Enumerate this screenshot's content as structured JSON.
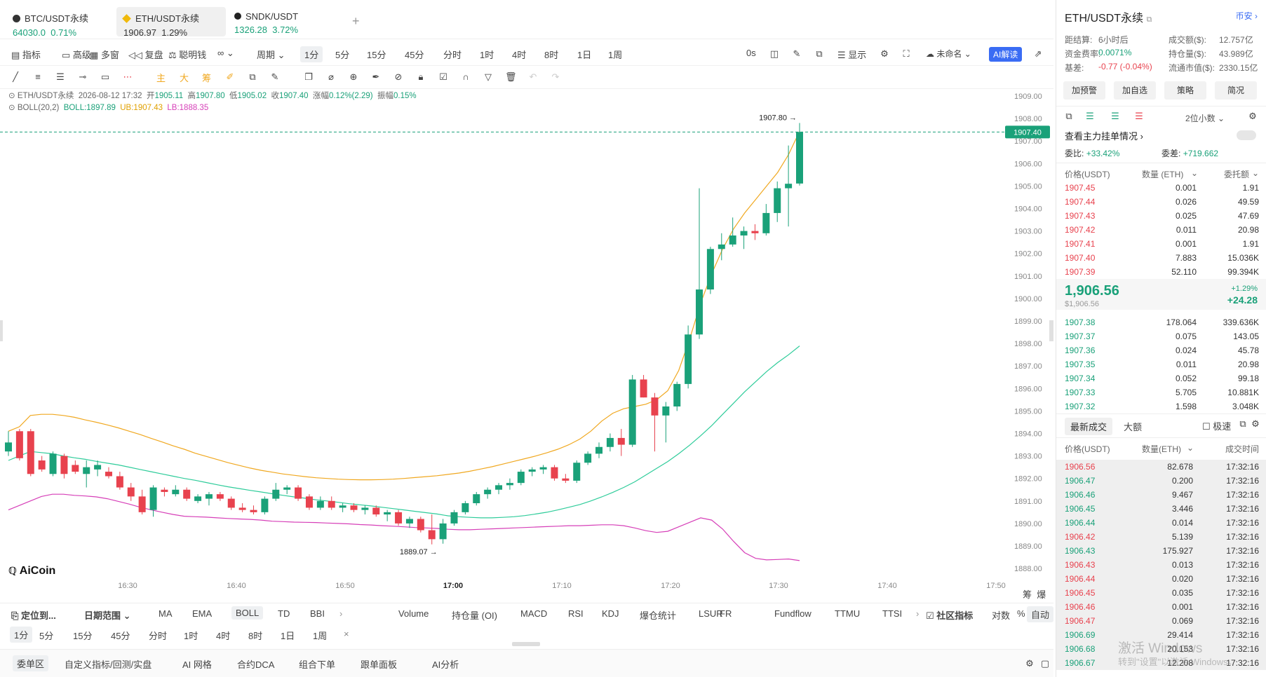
{
  "tabs": [
    {
      "name": "BTC/USDT永续",
      "price": "64030.0",
      "change": "0.71%",
      "color": "green",
      "icon": "btc-icon"
    },
    {
      "name": "ETH/USDT永续",
      "price": "1906.97",
      "change": "1.29%",
      "color": "dark",
      "icon": "eth-icon"
    },
    {
      "name": "SNDK/USDT",
      "price": "1326.28",
      "change": "3.72%",
      "color": "green",
      "icon": "sndk-icon"
    }
  ],
  "add_tab": "+",
  "toolbar1": {
    "indicator": "指标",
    "advanced": "高级",
    "multi": "多窗",
    "replay": "复盘",
    "smart": "聪明钱",
    "period": "周期",
    "intervals": [
      "1分",
      "5分",
      "15分",
      "45分",
      "分时",
      "1时",
      "4时",
      "8时",
      "1日",
      "1周"
    ],
    "active_interval": "1分",
    "seconds": "0s",
    "display": "显示",
    "unnamed": "未命名",
    "ai": "AI解读"
  },
  "toolbar2": {
    "main": "主",
    "big": "大",
    "chip": "筹"
  },
  "legend": {
    "symbol": "ETH/USDT永续",
    "datetime": "2026-08-12 17:32",
    "open_label": "开",
    "open": "1905.11",
    "high_label": "高",
    "high": "1907.80",
    "low_label": "低",
    "low": "1905.02",
    "close_label": "收",
    "close": "1907.40",
    "chg_label": "涨幅",
    "chg": "0.12%(2.29)",
    "amp_label": "振幅",
    "amp": "0.15%",
    "boll": "BOLL(20,2)",
    "boll_v": "BOLL:1897.89",
    "ub": "UB:1907.43",
    "lb": "LB:1888.35"
  },
  "chart_data": {
    "type": "candlestick",
    "ylim": [
      1887.6,
      1909.2
    ],
    "y_ticks": [
      "1909.00",
      "1908.00",
      "1907.00",
      "1906.00",
      "1905.00",
      "1904.00",
      "1903.00",
      "1902.00",
      "1901.00",
      "1900.00",
      "1899.00",
      "1898.00",
      "1897.00",
      "1896.00",
      "1895.00",
      "1894.00",
      "1893.00",
      "1892.00",
      "1891.00",
      "1890.00",
      "1889.00",
      "1888.00"
    ],
    "x_ticks": [
      "16:30",
      "16:40",
      "16:50",
      "17:00",
      "17:10",
      "17:20",
      "17:30",
      "17:40",
      "17:50"
    ],
    "current_price": "1907.40",
    "high_marker": "1907.80 →",
    "low_marker": "1889.07 →",
    "candles": [
      [
        1893.2,
        1894.1,
        1893.0,
        1893.6
      ],
      [
        1894.1,
        1894.2,
        1892.8,
        1892.9
      ],
      [
        1894.1,
        1894.2,
        1892.1,
        1892.2
      ],
      [
        1892.8,
        1893.0,
        1892.3,
        1892.4
      ],
      [
        1892.2,
        1893.2,
        1892.1,
        1893.1
      ],
      [
        1893.0,
        1893.1,
        1892.0,
        1892.2
      ],
      [
        1892.6,
        1892.8,
        1892.2,
        1892.3
      ],
      [
        1892.2,
        1892.8,
        1891.6,
        1892.5
      ],
      [
        1892.4,
        1892.8,
        1892.1,
        1892.6
      ],
      [
        1892.3,
        1892.5,
        1892.0,
        1892.1
      ],
      [
        1892.1,
        1892.3,
        1891.5,
        1891.6
      ],
      [
        1891.6,
        1891.8,
        1891.0,
        1891.2
      ],
      [
        1891.2,
        1891.5,
        1890.4,
        1890.5
      ],
      [
        1890.6,
        1891.7,
        1890.3,
        1891.6
      ],
      [
        1891.5,
        1891.6,
        1891.2,
        1891.4
      ],
      [
        1891.3,
        1891.7,
        1891.2,
        1891.5
      ],
      [
        1891.5,
        1891.6,
        1891.0,
        1891.1
      ],
      [
        1891.0,
        1891.3,
        1890.9,
        1891.2
      ],
      [
        1891.1,
        1891.4,
        1890.8,
        1891.3
      ],
      [
        1891.3,
        1891.4,
        1891.0,
        1891.1
      ],
      [
        1891.1,
        1891.2,
        1890.6,
        1890.7
      ],
      [
        1890.7,
        1890.9,
        1890.5,
        1890.6
      ],
      [
        1890.6,
        1890.8,
        1890.4,
        1890.5
      ],
      [
        1890.5,
        1891.2,
        1890.4,
        1891.1
      ],
      [
        1891.1,
        1891.8,
        1891.0,
        1891.5
      ],
      [
        1891.5,
        1891.7,
        1891.3,
        1891.6
      ],
      [
        1891.6,
        1891.7,
        1891.0,
        1891.1
      ],
      [
        1891.2,
        1891.3,
        1890.6,
        1890.7
      ],
      [
        1890.7,
        1891.2,
        1890.6,
        1891.0
      ],
      [
        1891.0,
        1891.2,
        1890.6,
        1890.7
      ],
      [
        1890.7,
        1890.9,
        1890.5,
        1890.8
      ],
      [
        1890.8,
        1890.9,
        1890.5,
        1890.6
      ],
      [
        1890.6,
        1890.8,
        1890.4,
        1890.7
      ],
      [
        1890.7,
        1890.8,
        1890.3,
        1890.4
      ],
      [
        1890.4,
        1890.6,
        1890.1,
        1890.5
      ],
      [
        1890.5,
        1890.6,
        1889.9,
        1890.0
      ],
      [
        1890.0,
        1890.3,
        1889.8,
        1890.2
      ],
      [
        1890.2,
        1890.3,
        1889.6,
        1889.7
      ],
      [
        1889.7,
        1890.4,
        1889.07,
        1889.3
      ],
      [
        1889.3,
        1890.2,
        1889.1,
        1890.0
      ],
      [
        1890.0,
        1890.6,
        1889.9,
        1890.5
      ],
      [
        1890.5,
        1891.0,
        1890.4,
        1890.9
      ],
      [
        1890.9,
        1891.4,
        1890.8,
        1891.3
      ],
      [
        1891.3,
        1891.6,
        1891.1,
        1891.5
      ],
      [
        1891.5,
        1891.8,
        1891.3,
        1891.7
      ],
      [
        1891.7,
        1892.0,
        1891.5,
        1891.8
      ],
      [
        1891.8,
        1892.4,
        1891.7,
        1892.3
      ],
      [
        1892.3,
        1892.5,
        1892.1,
        1892.4
      ],
      [
        1892.4,
        1892.6,
        1892.2,
        1892.5
      ],
      [
        1892.5,
        1892.6,
        1891.9,
        1892.0
      ],
      [
        1892.0,
        1892.2,
        1891.8,
        1891.9
      ],
      [
        1891.9,
        1892.8,
        1891.8,
        1892.7
      ],
      [
        1892.7,
        1893.2,
        1892.6,
        1893.1
      ],
      [
        1893.1,
        1893.6,
        1892.9,
        1893.4
      ],
      [
        1893.4,
        1894.0,
        1893.2,
        1893.8
      ],
      [
        1893.8,
        1894.2,
        1893.0,
        1893.5
      ],
      [
        1893.5,
        1896.6,
        1893.4,
        1896.4
      ],
      [
        1896.4,
        1896.6,
        1895.6,
        1895.6
      ],
      [
        1895.6,
        1895.8,
        1893.2,
        1894.8
      ],
      [
        1894.8,
        1895.4,
        1893.6,
        1895.2
      ],
      [
        1895.2,
        1896.3,
        1895.0,
        1896.2
      ],
      [
        1896.2,
        1898.8,
        1896.0,
        1898.4
      ],
      [
        1898.4,
        1904.9,
        1898.2,
        1900.4
      ],
      [
        1900.4,
        1902.3,
        1900.2,
        1902.2
      ],
      [
        1902.2,
        1902.9,
        1901.7,
        1902.4
      ],
      [
        1902.4,
        1903.6,
        1902.3,
        1902.8
      ],
      [
        1902.8,
        1903.2,
        1902.2,
        1903.0
      ],
      [
        1903.0,
        1903.3,
        1902.6,
        1902.9
      ],
      [
        1902.9,
        1904.2,
        1902.8,
        1903.8
      ],
      [
        1903.8,
        1905.2,
        1903.4,
        1904.9
      ],
      [
        1904.9,
        1906.8,
        1903.2,
        1905.1
      ],
      [
        1905.11,
        1907.8,
        1905.02,
        1907.4
      ]
    ],
    "boll_mid": [
      1893.2,
      1893.15,
      1893.1,
      1893.0,
      1892.92,
      1892.85,
      1892.76,
      1892.68,
      1892.6,
      1892.5,
      1892.4,
      1892.3,
      1892.2,
      1892.1,
      1892.0,
      1891.92,
      1891.82,
      1891.72,
      1891.63,
      1891.55,
      1891.47,
      1891.4,
      1891.32,
      1891.25,
      1891.18,
      1891.12,
      1891.05,
      1891.0,
      1890.94,
      1890.88,
      1890.83,
      1890.78,
      1890.72,
      1890.66,
      1890.6,
      1890.54,
      1890.48,
      1890.42,
      1890.34,
      1890.3,
      1890.27,
      1890.25,
      1890.25,
      1890.27,
      1890.3,
      1890.35,
      1890.42,
      1890.5,
      1890.6,
      1890.72,
      1890.84,
      1891.0,
      1891.18,
      1891.38,
      1891.6,
      1891.85,
      1892.15,
      1892.45,
      1892.75,
      1893.1,
      1893.48,
      1893.9,
      1894.35,
      1894.85,
      1895.35,
      1895.85,
      1896.3,
      1896.75,
      1897.15,
      1897.5,
      1897.89
    ],
    "boll_ub": [
      1894.8,
      1894.85,
      1894.85,
      1894.8,
      1894.72,
      1894.6,
      1894.5,
      1894.38,
      1894.25,
      1894.1,
      1893.95,
      1893.78,
      1893.62,
      1893.45,
      1893.3,
      1893.12,
      1892.98,
      1892.84,
      1892.7,
      1892.58,
      1892.46,
      1892.36,
      1892.28,
      1892.2,
      1892.14,
      1892.08,
      1892.03,
      1892.0,
      1891.97,
      1891.95,
      1891.94,
      1891.94,
      1891.95,
      1891.97,
      1892.0,
      1892.04,
      1892.08,
      1892.12,
      1892.18,
      1892.24,
      1892.32,
      1892.42,
      1892.52,
      1892.64,
      1892.76,
      1892.88,
      1893.0,
      1893.14,
      1893.3,
      1893.5,
      1893.75,
      1894.1,
      1894.55,
      1894.9,
      1895.1,
      1895.2,
      1895.3,
      1895.5,
      1895.9,
      1896.8,
      1898.2,
      1899.8,
      1901.1,
      1902.2,
      1903.1,
      1903.8,
      1904.4,
      1905.0,
      1905.6,
      1906.4,
      1907.43
    ],
    "boll_lb": [
      1891.0,
      1891.2,
      1891.3,
      1891.3,
      1891.25,
      1891.22,
      1891.18,
      1891.1,
      1890.98,
      1890.86,
      1890.72,
      1890.6,
      1890.5,
      1890.4,
      1890.32,
      1890.3,
      1890.28,
      1890.25,
      1890.22,
      1890.2,
      1890.18,
      1890.15,
      1890.1,
      1890.08,
      1890.06,
      1890.05,
      1890.04,
      1890.02,
      1890.0,
      1889.98,
      1889.95,
      1889.93,
      1889.9,
      1889.88,
      1889.85,
      1889.82,
      1889.8,
      1889.78,
      1889.74,
      1889.72,
      1889.72,
      1889.74,
      1889.76,
      1889.78,
      1889.8,
      1889.82,
      1889.84,
      1889.86,
      1889.88,
      1889.9,
      1889.9,
      1889.92,
      1889.94,
      1889.94,
      1889.9,
      1889.8,
      1889.68,
      1889.6,
      1889.65,
      1889.85,
      1890.05,
      1890.25,
      1890.15,
      1889.75,
      1889.2,
      1888.7,
      1888.45,
      1888.38,
      1888.4,
      1888.42,
      1888.35
    ]
  },
  "brand": "AiCoin",
  "axis_right": [
    "筹",
    "爆"
  ],
  "indicators_bar": {
    "locate": "定位到...",
    "date_range": "日期范围",
    "main": [
      "MA",
      "EMA",
      "BOLL",
      "TD",
      "BBI"
    ],
    "active_main": "BOLL",
    "sub": [
      "Volume",
      "持仓量 (OI)",
      "MACD",
      "RSI",
      "KDJ",
      "爆仓统计",
      "LSUR",
      "FR",
      "Fundflow",
      "TTMU",
      "TTSI"
    ],
    "community": "社区指标",
    "log": "对数",
    "pct": "%",
    "auto": "自动"
  },
  "interval_bar": [
    "1分",
    "5分",
    "15分",
    "45分",
    "分时",
    "1时",
    "4时",
    "8时",
    "1日",
    "1周"
  ],
  "interval_close": "×",
  "bottom_tabs": [
    "委单区",
    "自定义指标/回测/实盘",
    "AI 网格",
    "合约DCA",
    "组合下单",
    "跟单面板",
    "AI分析"
  ],
  "right": {
    "title": "ETH/USDT永续",
    "coin_link": "币安",
    "stats": [
      {
        "l": "距结算:",
        "v": "6小时后",
        "l2": "成交额($):",
        "v2": "12.757亿"
      },
      {
        "l": "资金费率:",
        "v": "0.0071%",
        "l2": "持仓量($):",
        "v2": "43.989亿"
      },
      {
        "l": "基差:",
        "v": "-0.77 (-0.04%)",
        "l2": "流通市值($):",
        "v2": "2330.15亿"
      }
    ],
    "buttons": [
      "加预警",
      "加自选",
      "策略",
      "简况"
    ],
    "decimals": "2位小数",
    "main_orders": "查看主力挂单情况",
    "ratio_label": "委比:",
    "ratio": "+33.42%",
    "diff_label": "委差:",
    "diff": "+719.662",
    "ob_headers": [
      "价格(USDT)",
      "数量 (ETH)",
      "委托额"
    ],
    "asks": [
      [
        "1907.45",
        "0.001",
        "1.91"
      ],
      [
        "1907.44",
        "0.026",
        "49.59"
      ],
      [
        "1907.43",
        "0.025",
        "47.69"
      ],
      [
        "1907.42",
        "0.011",
        "20.98"
      ],
      [
        "1907.41",
        "0.001",
        "1.91"
      ],
      [
        "1907.40",
        "7.883",
        "15.036K"
      ],
      [
        "1907.39",
        "52.110",
        "99.394K"
      ]
    ],
    "last_price": "1,906.56",
    "last_usd": "$1,906.56",
    "last_pct": "+1.29%",
    "last_chg": "+24.28",
    "bids": [
      [
        "1907.38",
        "178.064",
        "339.636K"
      ],
      [
        "1907.37",
        "0.075",
        "143.05"
      ],
      [
        "1907.36",
        "0.024",
        "45.78"
      ],
      [
        "1907.35",
        "0.011",
        "20.98"
      ],
      [
        "1907.34",
        "0.052",
        "99.18"
      ],
      [
        "1907.33",
        "5.705",
        "10.881K"
      ],
      [
        "1907.32",
        "1.598",
        "3.048K"
      ]
    ],
    "trade_tabs": [
      "最新成交",
      "大额"
    ],
    "fast_label": "极速",
    "trade_headers": [
      "价格(USDT)",
      "数量(ETH)",
      "成交时间"
    ],
    "trades": [
      [
        "1906.56",
        "82.678",
        "17:32:16",
        "red"
      ],
      [
        "1906.47",
        "0.200",
        "17:32:16",
        "green"
      ],
      [
        "1906.46",
        "9.467",
        "17:32:16",
        "green"
      ],
      [
        "1906.45",
        "3.446",
        "17:32:16",
        "green"
      ],
      [
        "1906.44",
        "0.014",
        "17:32:16",
        "green"
      ],
      [
        "1906.42",
        "5.139",
        "17:32:16",
        "red"
      ],
      [
        "1906.43",
        "175.927",
        "17:32:16",
        "green"
      ],
      [
        "1906.43",
        "0.013",
        "17:32:16",
        "red"
      ],
      [
        "1906.44",
        "0.020",
        "17:32:16",
        "red"
      ],
      [
        "1906.45",
        "0.035",
        "17:32:16",
        "red"
      ],
      [
        "1906.46",
        "0.001",
        "17:32:16",
        "red"
      ],
      [
        "1906.47",
        "0.069",
        "17:32:16",
        "red"
      ],
      [
        "1906.69",
        "29.414",
        "17:32:16",
        "green"
      ],
      [
        "1906.68",
        "20.153",
        "17:32:16",
        "green"
      ],
      [
        "1906.67",
        "12.208",
        "17:32:16",
        "green"
      ]
    ],
    "watermark1": "激活 Windows",
    "watermark2": "转到\"设置\"以激活 Windows。"
  },
  "colors": {
    "up": "#1aa179",
    "down": "#e8424e",
    "mid": "#2ecc9a",
    "ub": "#f0a820",
    "lb": "#d63fb8",
    "accent": "#3a6cf4"
  }
}
